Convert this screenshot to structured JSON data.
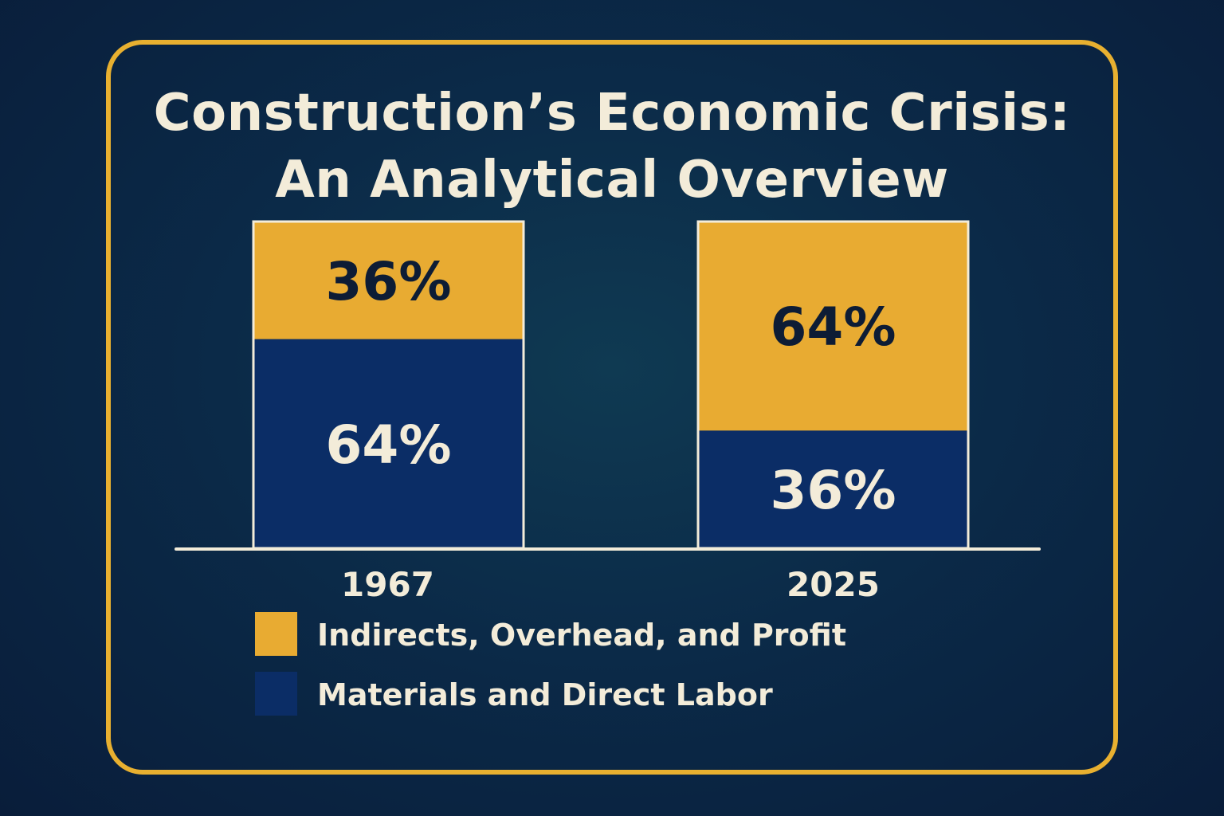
{
  "title": {
    "line1": "Construction’s Economic Crisis:",
    "line2": "An Analytical Overview"
  },
  "colors": {
    "background": "#0b2a48",
    "frame": "#e8b030",
    "indirects": "#e8ab32",
    "materials": "#0b2d66",
    "text_light": "#f3ecd9",
    "text_dark": "#0d1c35"
  },
  "chart_data": {
    "type": "bar",
    "stacked": true,
    "categories": [
      "1967",
      "2025"
    ],
    "series": [
      {
        "name": "Materials and Direct Labor",
        "values": [
          64,
          36
        ],
        "labels": [
          "64%",
          "36%"
        ],
        "color": "#0b2d66"
      },
      {
        "name": "Indirects, Overhead, and Profit",
        "values": [
          36,
          64
        ],
        "labels": [
          "36%",
          "64%"
        ],
        "color": "#e8ab32"
      }
    ],
    "ylim": [
      0,
      100
    ],
    "grid": false,
    "legend": {
      "position": "bottom-left",
      "entries": [
        "Indirects, Overhead, and Profit",
        "Materials and Direct Labor"
      ]
    }
  }
}
